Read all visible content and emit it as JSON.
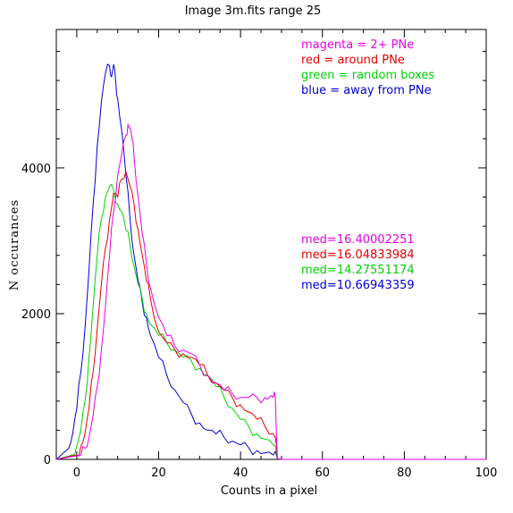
{
  "chart_data": {
    "type": "line",
    "title": "Image 3m.fits   range 25",
    "xlabel": "Counts in a pixel",
    "ylabel": "N occurances",
    "xlim": [
      -5,
      100
    ],
    "ylim": [
      0,
      5900
    ],
    "x_ticks": [
      0,
      20,
      40,
      60,
      80,
      100
    ],
    "y_ticks": [
      0,
      2000,
      4000
    ],
    "grid": false,
    "legend_position": "top-right",
    "legend": [
      {
        "text": "magenta = 2+ PNe",
        "color": "#e600e6"
      },
      {
        "text": "red = around PNe",
        "color": "#e60000"
      },
      {
        "text": "green = random boxes",
        "color": "#00d200"
      },
      {
        "text": "blue = away from PNe",
        "color": "#0000d2"
      }
    ],
    "medians": [
      {
        "text": "med=16.40002251",
        "color": "#e600e6"
      },
      {
        "text": "med=16.04833984",
        "color": "#e60000"
      },
      {
        "text": "med=14.27551174",
        "color": "#00d200"
      },
      {
        "text": "med=10.66943359",
        "color": "#0000d2"
      }
    ],
    "series": [
      {
        "color": "#0000d2",
        "x": [
          -5,
          -2,
          -1,
          0,
          1,
          2,
          3,
          4,
          5,
          6,
          7,
          8,
          8.5,
          9,
          9.5,
          10,
          11,
          12,
          13,
          14,
          15,
          16,
          17,
          18,
          20,
          22,
          24,
          26,
          28,
          30,
          32,
          34,
          36,
          38,
          40,
          42,
          44,
          46,
          48,
          49,
          50,
          60,
          100
        ],
        "y": [
          0,
          150,
          350,
          700,
          1200,
          1800,
          2600,
          3500,
          4300,
          4900,
          5300,
          5400,
          5250,
          5420,
          5200,
          4950,
          4500,
          3900,
          3300,
          2800,
          2450,
          2150,
          1950,
          1700,
          1400,
          1150,
          950,
          780,
          620,
          500,
          400,
          350,
          300,
          250,
          200,
          160,
          120,
          90,
          60,
          10,
          0,
          0,
          0
        ]
      },
      {
        "color": "#00d200",
        "x": [
          -5,
          -1,
          0,
          1,
          2,
          3,
          4,
          5,
          6,
          7,
          8,
          9,
          10,
          11,
          12,
          13,
          14,
          15,
          16,
          17,
          18,
          20,
          22,
          24,
          26,
          28,
          30,
          32,
          34,
          36,
          38,
          40,
          42,
          44,
          46,
          48,
          49,
          50,
          60,
          100
        ],
        "y": [
          0,
          60,
          180,
          400,
          800,
          1400,
          2100,
          2800,
          3300,
          3600,
          3750,
          3700,
          3500,
          3400,
          3150,
          2950,
          2650,
          2400,
          2200,
          2000,
          1850,
          1700,
          1600,
          1500,
          1400,
          1350,
          1250,
          1150,
          1000,
          850,
          700,
          550,
          450,
          350,
          280,
          200,
          10,
          0,
          0,
          0
        ]
      },
      {
        "color": "#e60000",
        "x": [
          -5,
          0,
          1,
          2,
          3,
          4,
          5,
          6,
          7,
          8,
          9,
          10,
          11,
          12,
          13,
          14,
          15,
          16,
          17,
          18,
          20,
          22,
          24,
          26,
          28,
          30,
          32,
          34,
          36,
          38,
          40,
          42,
          44,
          46,
          48,
          48.5,
          49,
          50,
          60,
          100
        ],
        "y": [
          0,
          60,
          180,
          350,
          700,
          1200,
          1800,
          2400,
          2900,
          3300,
          3650,
          3600,
          3850,
          3950,
          3750,
          3500,
          3150,
          2800,
          2450,
          2200,
          1750,
          1600,
          1500,
          1450,
          1400,
          1300,
          1150,
          1050,
          950,
          850,
          750,
          650,
          550,
          450,
          350,
          300,
          10,
          0,
          0,
          0
        ]
      },
      {
        "color": "#e600e6",
        "x": [
          -5,
          1,
          2,
          3,
          4,
          5,
          6,
          7,
          8,
          9,
          10,
          11,
          12,
          12.5,
          13,
          13.5,
          14,
          15,
          16,
          17,
          18,
          20,
          22,
          24,
          26,
          28,
          30,
          32,
          34,
          36,
          38,
          40,
          42,
          44,
          46,
          47,
          48,
          48.5,
          49,
          50,
          60,
          100
        ],
        "y": [
          0,
          60,
          150,
          300,
          600,
          1000,
          1500,
          2100,
          2800,
          3400,
          3900,
          4200,
          4450,
          4600,
          4550,
          4400,
          4150,
          3600,
          3100,
          2700,
          2350,
          1950,
          1700,
          1550,
          1500,
          1450,
          1300,
          1150,
          1050,
          950,
          900,
          850,
          850,
          850,
          850,
          850,
          850,
          850,
          10,
          0,
          0,
          0
        ]
      }
    ]
  }
}
